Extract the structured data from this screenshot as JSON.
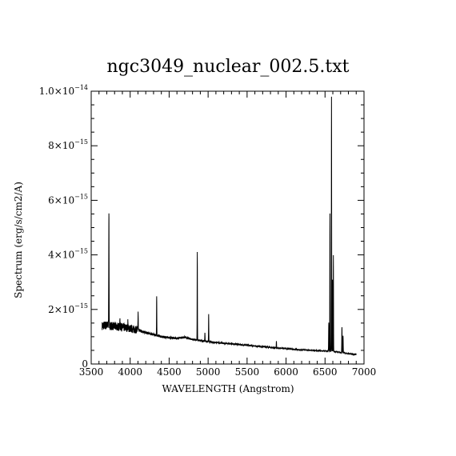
{
  "chart_data": {
    "type": "line",
    "title": "ngc3049_nuclear_002.5.txt",
    "xlabel": "WAVELENGTH (Angstrom)",
    "ylabel": "Spectrum (erg/s/cm2/A)",
    "xlim": [
      3500,
      7000
    ],
    "ylim": [
      0,
      1e-14
    ],
    "grid": false,
    "legend": "none",
    "x_ticks": [
      3500,
      4000,
      4500,
      5000,
      5500,
      6000,
      6500,
      7000
    ],
    "x_tick_labels": [
      "3500",
      "4000",
      "4500",
      "5000",
      "5500",
      "6000",
      "6500",
      "7000"
    ],
    "y_ticks": [
      {
        "value": 0,
        "mantissa": "0",
        "exponent": ""
      },
      {
        "value": 2e-15,
        "mantissa": "2×10",
        "exponent": "−15"
      },
      {
        "value": 4e-15,
        "mantissa": "4×10",
        "exponent": "−15"
      },
      {
        "value": 6e-15,
        "mantissa": "6×10",
        "exponent": "−15"
      },
      {
        "value": 8e-15,
        "mantissa": "8×10",
        "exponent": "−15"
      },
      {
        "value": 1e-14,
        "mantissa": "1.0×10",
        "exponent": "−14"
      }
    ],
    "continuum": {
      "x": [
        3640,
        3700,
        3800,
        3900,
        4000,
        4100,
        4200,
        4300,
        4400,
        4500,
        4600,
        4700,
        4800,
        4900,
        5000,
        5200,
        5400,
        5600,
        5800,
        6000,
        6200,
        6400,
        6550,
        6700,
        6800,
        6900
      ],
      "y": [
        1.4e-15,
        1.42e-15,
        1.38e-15,
        1.35e-15,
        1.3e-15,
        1.25e-15,
        1.15e-15,
        1.08e-15,
        1e-15,
        9.7e-16,
        9.4e-16,
        9.8e-16,
        9e-16,
        8.6e-16,
        8.2e-16,
        7.6e-16,
        7.1e-16,
        6.6e-16,
        6.1e-16,
        5.6e-16,
        5.2e-16,
        4.9e-16,
        4.7e-16,
        4.3e-16,
        3.8e-16,
        3.5e-16
      ]
    },
    "emission_lines": [
      {
        "x": 3727,
        "peak": 5.65e-15,
        "width": 5
      },
      {
        "x": 3869,
        "peak": 1.7e-15,
        "width": 4
      },
      {
        "x": 3970,
        "peak": 1.55e-15,
        "width": 4
      },
      {
        "x": 4102,
        "peak": 1.9e-15,
        "width": 4
      },
      {
        "x": 4340,
        "peak": 2.5e-15,
        "width": 4
      },
      {
        "x": 4861,
        "peak": 4.1e-15,
        "width": 4
      },
      {
        "x": 4959,
        "peak": 1.15e-15,
        "width": 4
      },
      {
        "x": 5007,
        "peak": 1.8e-15,
        "width": 4
      },
      {
        "x": 5876,
        "peak": 8.5e-16,
        "width": 4
      },
      {
        "x": 6548,
        "peak": 1.5e-15,
        "width": 5
      },
      {
        "x": 6563,
        "peak": 5.5e-15,
        "width": 4
      },
      {
        "x": 6583,
        "peak": 9.8e-15,
        "width": 4
      },
      {
        "x": 6595,
        "peak": 3.1e-15,
        "width": 4
      },
      {
        "x": 6607,
        "peak": 4e-15,
        "width": 4
      },
      {
        "x": 6717,
        "peak": 1.35e-15,
        "width": 5
      },
      {
        "x": 6731,
        "peak": 1.05e-15,
        "width": 5
      }
    ]
  }
}
